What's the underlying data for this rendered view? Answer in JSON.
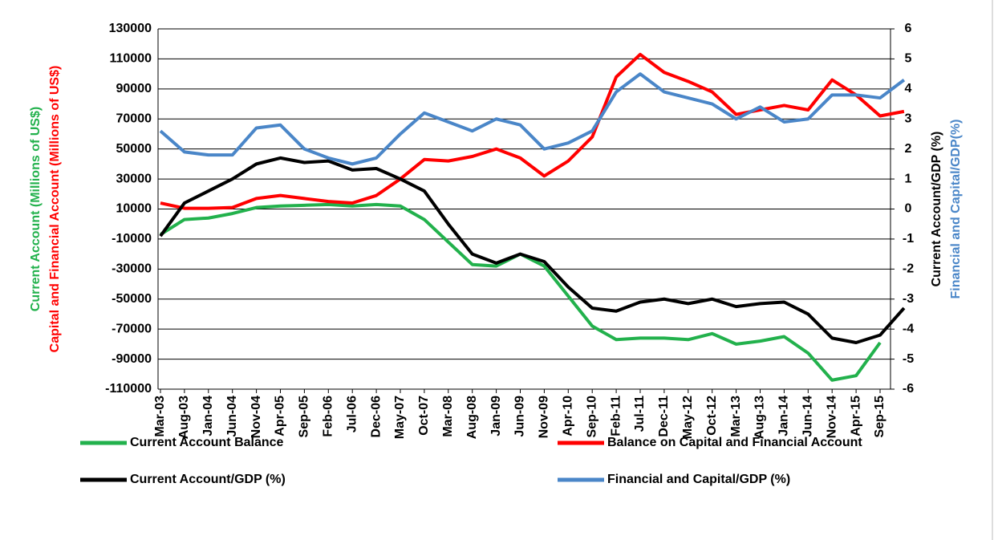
{
  "chart_data": {
    "type": "line",
    "categories": [
      "Mar-03",
      "Aug-03",
      "Jan-04",
      "Jun-04",
      "Nov-04",
      "Apr-05",
      "Sep-05",
      "Feb-06",
      "Jul-06",
      "Dec-06",
      "May-07",
      "Oct-07",
      "Mar-08",
      "Aug-08",
      "Jan-09",
      "Jun-09",
      "Nov-09",
      "Apr-10",
      "Sep-10",
      "Feb-11",
      "Jul-11",
      "Dec-11",
      "May-12",
      "Oct-12",
      "Mar-13",
      "Aug-13",
      "Jan-14",
      "Jun-14",
      "Nov-14",
      "Apr-15",
      "Sep-15",
      null
    ],
    "ylabels": [
      {
        "text": "Current  Account (Millions of US$)",
        "color": "#22b14c"
      },
      {
        "text": "Capital and Financial Account (Millions of US$)",
        "color": "#ff0000"
      }
    ],
    "y2labels": [
      {
        "text": "Current Account/GDP (%)",
        "color": "#000000"
      },
      {
        "text": "Financial  and Capital/GDP(%)",
        "color": "#4a86c8"
      }
    ],
    "ylim": [
      -110000,
      130000
    ],
    "yticks": [
      -110000,
      -90000,
      -70000,
      -50000,
      -30000,
      -10000,
      10000,
      30000,
      50000,
      70000,
      90000,
      110000,
      130000
    ],
    "y2lim": [
      -6,
      6
    ],
    "y2ticks": [
      -6,
      -5,
      -4,
      -3,
      -2,
      -1,
      0,
      1,
      2,
      3,
      4,
      5,
      6
    ],
    "grid": true,
    "legend": "bottom",
    "series": [
      {
        "name": "Current Account Balance",
        "color": "#22b14c",
        "values": [
          -7000,
          3000,
          4000,
          7000,
          11000,
          12000,
          12500,
          13000,
          12000,
          13000,
          12000,
          3000,
          -12000,
          -27000,
          -28000,
          -20000,
          -28000,
          -48000,
          -68000,
          -77000,
          -76000,
          -76000,
          -77000,
          -73000,
          -80000,
          -78000,
          -75000,
          -86000,
          -104000,
          -101000,
          -79000,
          null
        ]
      },
      {
        "name": "Balance on Capital and Financial Account",
        "color": "#ff0000",
        "values": [
          14000,
          10500,
          10500,
          11000,
          17000,
          19000,
          17000,
          15000,
          14000,
          19000,
          30000,
          43000,
          42000,
          45000,
          50000,
          44000,
          32000,
          42000,
          58000,
          98000,
          113000,
          101000,
          95000,
          88000,
          73000,
          76000,
          79000,
          76000,
          96000,
          86000,
          72000,
          75000
        ]
      },
      {
        "name": "Current Account/GDP (%)",
        "color": "#000000",
        "axis": "y2",
        "values": [
          -0.9,
          0.2,
          0.6,
          1.0,
          1.5,
          1.7,
          1.55,
          1.6,
          1.3,
          1.35,
          1.0,
          0.6,
          -0.5,
          -1.5,
          -1.8,
          -1.5,
          -1.75,
          -2.6,
          -3.3,
          -3.4,
          -3.1,
          -3.0,
          -3.15,
          -3.0,
          -3.25,
          -3.15,
          -3.1,
          -3.5,
          -4.3,
          -4.45,
          -4.2,
          -3.3
        ]
      },
      {
        "name": "Financial and Capital/GDP (%)",
        "color": "#4a86c8",
        "axis": "y2",
        "values": [
          2.6,
          1.9,
          1.8,
          1.8,
          2.7,
          2.8,
          2.0,
          1.7,
          1.5,
          1.7,
          2.5,
          3.2,
          2.9,
          2.6,
          3.0,
          2.8,
          2.0,
          2.2,
          2.6,
          3.9,
          4.5,
          3.9,
          3.7,
          3.5,
          3.0,
          3.4,
          2.9,
          3.0,
          3.8,
          3.8,
          3.7,
          4.3
        ]
      }
    ]
  }
}
